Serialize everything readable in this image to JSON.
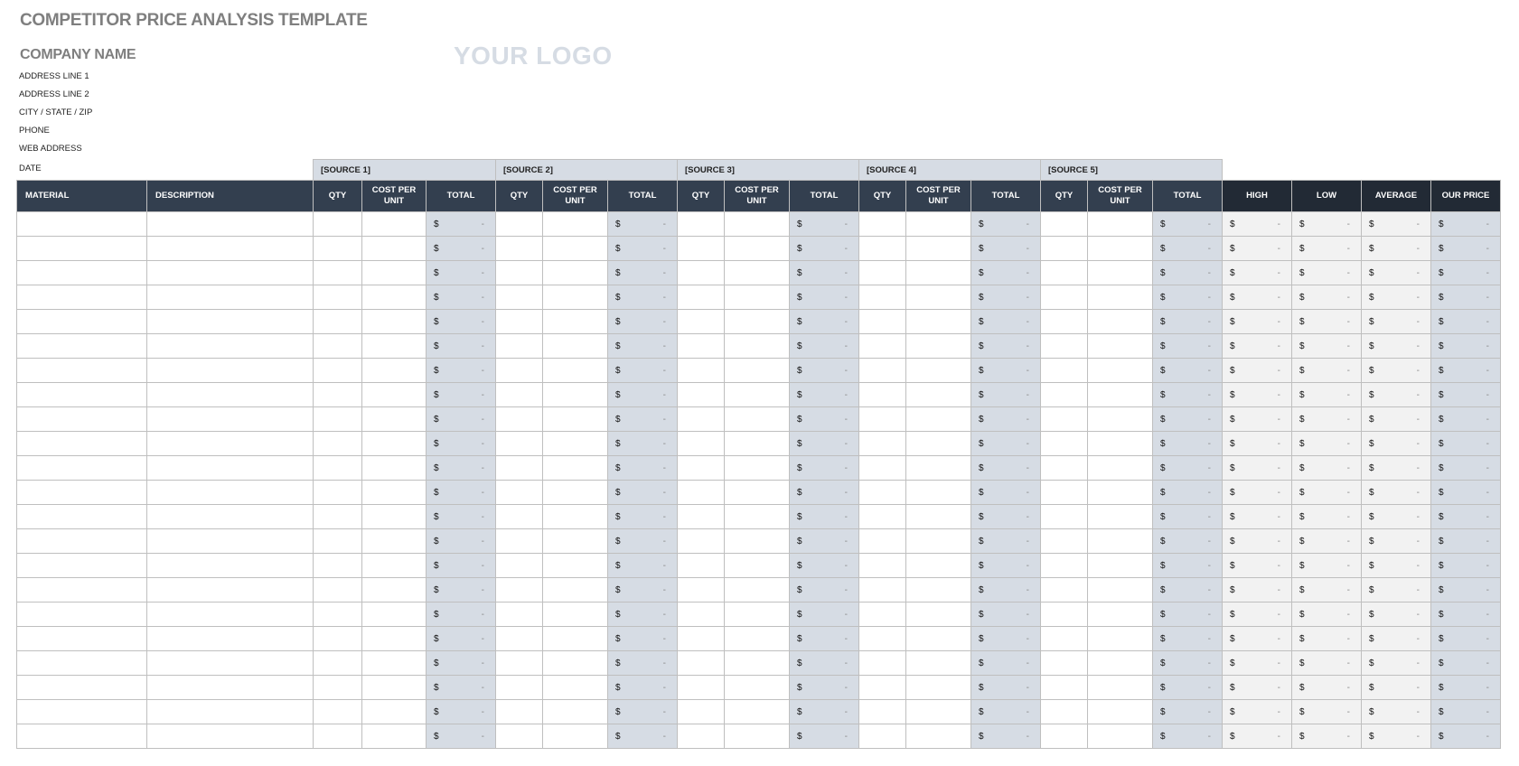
{
  "title": "COMPETITOR PRICE ANALYSIS TEMPLATE",
  "company": {
    "name": "COMPANY NAME",
    "lines": [
      "ADDRESS LINE 1",
      "ADDRESS LINE 2",
      "CITY / STATE / ZIP",
      "PHONE",
      "WEB ADDRESS",
      "DATE"
    ]
  },
  "logo": "YOUR LOGO",
  "sources": [
    "[SOURCE 1]",
    "[SOURCE 2]",
    "[SOURCE 3]",
    "[SOURCE 4]",
    "[SOURCE 5]"
  ],
  "headers": {
    "material": "MATERIAL",
    "description": "DESCRIPTION",
    "qty": "QTY",
    "cost_per_unit": "COST PER UNIT",
    "total": "TOTAL",
    "high": "HIGH",
    "low": "LOW",
    "average": "AVERAGE",
    "our_price": "OUR PRICE"
  },
  "currency": "$",
  "colors": {
    "header": "#333f4f",
    "summary_header": "#222a35",
    "total_fill": "#d6dce4",
    "summary_fill": "#f2f2f2"
  },
  "rows": [
    {
      "m": "",
      "d": "",
      "s": [
        [
          "",
          "",
          "-"
        ],
        [
          "",
          "",
          "-"
        ],
        [
          "",
          "",
          "-"
        ],
        [
          "",
          "",
          "-"
        ],
        [
          "",
          "",
          "-"
        ]
      ],
      "h": "-",
      "l": "-",
      "a": "-",
      "o": "-"
    },
    {
      "m": "",
      "d": "",
      "s": [
        [
          "",
          "",
          "-"
        ],
        [
          "",
          "",
          "-"
        ],
        [
          "",
          "",
          "-"
        ],
        [
          "",
          "",
          "-"
        ],
        [
          "",
          "",
          "-"
        ]
      ],
      "h": "-",
      "l": "-",
      "a": "-",
      "o": "-"
    },
    {
      "m": "",
      "d": "",
      "s": [
        [
          "",
          "",
          "-"
        ],
        [
          "",
          "",
          "-"
        ],
        [
          "",
          "",
          "-"
        ],
        [
          "",
          "",
          "-"
        ],
        [
          "",
          "",
          "-"
        ]
      ],
      "h": "-",
      "l": "-",
      "a": "-",
      "o": "-"
    },
    {
      "m": "",
      "d": "",
      "s": [
        [
          "",
          "",
          "-"
        ],
        [
          "",
          "",
          "-"
        ],
        [
          "",
          "",
          "-"
        ],
        [
          "",
          "",
          "-"
        ],
        [
          "",
          "",
          "-"
        ]
      ],
      "h": "-",
      "l": "-",
      "a": "-",
      "o": "-"
    },
    {
      "m": "",
      "d": "",
      "s": [
        [
          "",
          "",
          "-"
        ],
        [
          "",
          "",
          "-"
        ],
        [
          "",
          "",
          "-"
        ],
        [
          "",
          "",
          "-"
        ],
        [
          "",
          "",
          "-"
        ]
      ],
      "h": "-",
      "l": "-",
      "a": "-",
      "o": "-"
    },
    {
      "m": "",
      "d": "",
      "s": [
        [
          "",
          "",
          "-"
        ],
        [
          "",
          "",
          "-"
        ],
        [
          "",
          "",
          "-"
        ],
        [
          "",
          "",
          "-"
        ],
        [
          "",
          "",
          "-"
        ]
      ],
      "h": "-",
      "l": "-",
      "a": "-",
      "o": "-"
    },
    {
      "m": "",
      "d": "",
      "s": [
        [
          "",
          "",
          "-"
        ],
        [
          "",
          "",
          "-"
        ],
        [
          "",
          "",
          "-"
        ],
        [
          "",
          "",
          "-"
        ],
        [
          "",
          "",
          "-"
        ]
      ],
      "h": "-",
      "l": "-",
      "a": "-",
      "o": "-"
    },
    {
      "m": "",
      "d": "",
      "s": [
        [
          "",
          "",
          "-"
        ],
        [
          "",
          "",
          "-"
        ],
        [
          "",
          "",
          "-"
        ],
        [
          "",
          "",
          "-"
        ],
        [
          "",
          "",
          "-"
        ]
      ],
      "h": "-",
      "l": "-",
      "a": "-",
      "o": "-"
    },
    {
      "m": "",
      "d": "",
      "s": [
        [
          "",
          "",
          "-"
        ],
        [
          "",
          "",
          "-"
        ],
        [
          "",
          "",
          "-"
        ],
        [
          "",
          "",
          "-"
        ],
        [
          "",
          "",
          "-"
        ]
      ],
      "h": "-",
      "l": "-",
      "a": "-",
      "o": "-"
    },
    {
      "m": "",
      "d": "",
      "s": [
        [
          "",
          "",
          "-"
        ],
        [
          "",
          "",
          "-"
        ],
        [
          "",
          "",
          "-"
        ],
        [
          "",
          "",
          "-"
        ],
        [
          "",
          "",
          "-"
        ]
      ],
      "h": "-",
      "l": "-",
      "a": "-",
      "o": "-"
    },
    {
      "m": "",
      "d": "",
      "s": [
        [
          "",
          "",
          "-"
        ],
        [
          "",
          "",
          "-"
        ],
        [
          "",
          "",
          "-"
        ],
        [
          "",
          "",
          "-"
        ],
        [
          "",
          "",
          "-"
        ]
      ],
      "h": "-",
      "l": "-",
      "a": "-",
      "o": "-"
    },
    {
      "m": "",
      "d": "",
      "s": [
        [
          "",
          "",
          "-"
        ],
        [
          "",
          "",
          "-"
        ],
        [
          "",
          "",
          "-"
        ],
        [
          "",
          "",
          "-"
        ],
        [
          "",
          "",
          "-"
        ]
      ],
      "h": "-",
      "l": "-",
      "a": "-",
      "o": "-"
    },
    {
      "m": "",
      "d": "",
      "s": [
        [
          "",
          "",
          "-"
        ],
        [
          "",
          "",
          "-"
        ],
        [
          "",
          "",
          "-"
        ],
        [
          "",
          "",
          "-"
        ],
        [
          "",
          "",
          "-"
        ]
      ],
      "h": "-",
      "l": "-",
      "a": "-",
      "o": "-"
    },
    {
      "m": "",
      "d": "",
      "s": [
        [
          "",
          "",
          "-"
        ],
        [
          "",
          "",
          "-"
        ],
        [
          "",
          "",
          "-"
        ],
        [
          "",
          "",
          "-"
        ],
        [
          "",
          "",
          "-"
        ]
      ],
      "h": "-",
      "l": "-",
      "a": "-",
      "o": "-"
    },
    {
      "m": "",
      "d": "",
      "s": [
        [
          "",
          "",
          "-"
        ],
        [
          "",
          "",
          "-"
        ],
        [
          "",
          "",
          "-"
        ],
        [
          "",
          "",
          "-"
        ],
        [
          "",
          "",
          "-"
        ]
      ],
      "h": "-",
      "l": "-",
      "a": "-",
      "o": "-"
    },
    {
      "m": "",
      "d": "",
      "s": [
        [
          "",
          "",
          "-"
        ],
        [
          "",
          "",
          "-"
        ],
        [
          "",
          "",
          "-"
        ],
        [
          "",
          "",
          "-"
        ],
        [
          "",
          "",
          "-"
        ]
      ],
      "h": "-",
      "l": "-",
      "a": "-",
      "o": "-"
    },
    {
      "m": "",
      "d": "",
      "s": [
        [
          "",
          "",
          "-"
        ],
        [
          "",
          "",
          "-"
        ],
        [
          "",
          "",
          "-"
        ],
        [
          "",
          "",
          "-"
        ],
        [
          "",
          "",
          "-"
        ]
      ],
      "h": "-",
      "l": "-",
      "a": "-",
      "o": "-"
    },
    {
      "m": "",
      "d": "",
      "s": [
        [
          "",
          "",
          "-"
        ],
        [
          "",
          "",
          "-"
        ],
        [
          "",
          "",
          "-"
        ],
        [
          "",
          "",
          "-"
        ],
        [
          "",
          "",
          "-"
        ]
      ],
      "h": "-",
      "l": "-",
      "a": "-",
      "o": "-"
    },
    {
      "m": "",
      "d": "",
      "s": [
        [
          "",
          "",
          "-"
        ],
        [
          "",
          "",
          "-"
        ],
        [
          "",
          "",
          "-"
        ],
        [
          "",
          "",
          "-"
        ],
        [
          "",
          "",
          "-"
        ]
      ],
      "h": "-",
      "l": "-",
      "a": "-",
      "o": "-"
    },
    {
      "m": "",
      "d": "",
      "s": [
        [
          "",
          "",
          "-"
        ],
        [
          "",
          "",
          "-"
        ],
        [
          "",
          "",
          "-"
        ],
        [
          "",
          "",
          "-"
        ],
        [
          "",
          "",
          "-"
        ]
      ],
      "h": "-",
      "l": "-",
      "a": "-",
      "o": "-"
    },
    {
      "m": "",
      "d": "",
      "s": [
        [
          "",
          "",
          "-"
        ],
        [
          "",
          "",
          "-"
        ],
        [
          "",
          "",
          "-"
        ],
        [
          "",
          "",
          "-"
        ],
        [
          "",
          "",
          "-"
        ]
      ],
      "h": "-",
      "l": "-",
      "a": "-",
      "o": "-"
    },
    {
      "m": "",
      "d": "",
      "s": [
        [
          "",
          "",
          "-"
        ],
        [
          "",
          "",
          "-"
        ],
        [
          "",
          "",
          "-"
        ],
        [
          "",
          "",
          "-"
        ],
        [
          "",
          "",
          "-"
        ]
      ],
      "h": "-",
      "l": "-",
      "a": "-",
      "o": "-"
    }
  ]
}
